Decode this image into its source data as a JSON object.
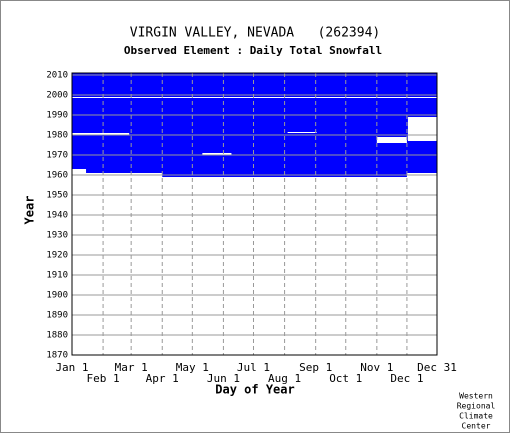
{
  "chart_data": {
    "type": "coverage",
    "title": "VIRGIN VALLEY, NEVADA   (262394)",
    "subtitle": "Observed Element : Daily Total Snowfall",
    "x_label": "Day of Year",
    "y_label": "Year",
    "xlim": [
      1,
      365
    ],
    "ylim": [
      1870,
      2011
    ],
    "xticks": [
      {
        "value": 1,
        "label": "Jan 1"
      },
      {
        "value": 32,
        "label": "Feb 1"
      },
      {
        "value": 60,
        "label": "Mar 1"
      },
      {
        "value": 91,
        "label": "Apr 1"
      },
      {
        "value": 121,
        "label": "May 1"
      },
      {
        "value": 152,
        "label": "Jun 1"
      },
      {
        "value": 182,
        "label": "Jul 1"
      },
      {
        "value": 213,
        "label": "Aug 1"
      },
      {
        "value": 244,
        "label": "Sep 1"
      },
      {
        "value": 274,
        "label": "Oct 1"
      },
      {
        "value": 305,
        "label": "Nov 1"
      },
      {
        "value": 335,
        "label": "Dec 1"
      },
      {
        "value": 365,
        "label": "Dec 31"
      }
    ],
    "yticks": [
      1870,
      1880,
      1890,
      1900,
      1910,
      1920,
      1930,
      1940,
      1950,
      1960,
      1970,
      1980,
      1990,
      2000,
      2010
    ],
    "color": "#0000ff",
    "gap_color": "#ffffff",
    "coverage": [
      [
        1961,
        2011,
        1,
        365
      ],
      [
        1959,
        1961,
        91,
        335
      ]
    ],
    "gaps": [
      [
        1998.5,
        1999,
        1,
        365
      ],
      [
        1980,
        1981,
        1,
        58
      ],
      [
        1981,
        1981.5,
        216,
        245
      ],
      [
        1976,
        1979,
        305,
        335
      ],
      [
        1977,
        1989,
        336,
        365
      ],
      [
        1961,
        1963,
        1,
        15
      ],
      [
        1970,
        1971,
        131,
        160
      ]
    ],
    "footer": [
      "Western",
      "Regional",
      "Climate",
      "Center"
    ]
  }
}
